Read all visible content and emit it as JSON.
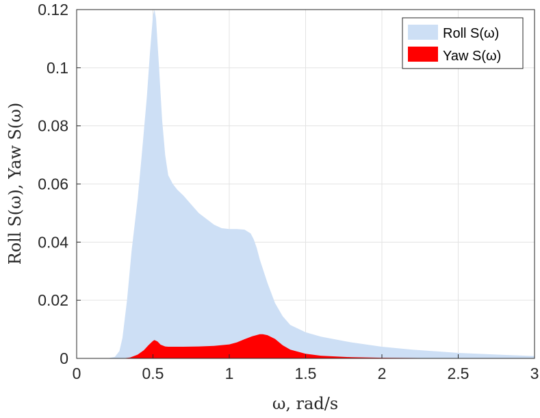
{
  "chart_data": {
    "type": "area",
    "xlabel": "ω, rad/s",
    "ylabel": "Roll S(ω), Yaw S(ω)",
    "xlim": [
      0,
      3
    ],
    "ylim": [
      0,
      0.12
    ],
    "xticks": [
      0,
      0.5,
      1,
      1.5,
      2,
      2.5,
      3
    ],
    "xtick_labels": [
      "0",
      "0.5",
      "1",
      "1.5",
      "2",
      "2.5",
      "3"
    ],
    "yticks": [
      0,
      0.02,
      0.04,
      0.06,
      0.08,
      0.1,
      0.12
    ],
    "ytick_labels": [
      "0",
      "0.02",
      "0.04",
      "0.06",
      "0.08",
      "0.1",
      "0.12"
    ],
    "grid": true,
    "legend_position": "top-right",
    "series": [
      {
        "name": "Roll S(ω)",
        "color": "#cddff5",
        "x": [
          0,
          0.2,
          0.25,
          0.28,
          0.3,
          0.33,
          0.36,
          0.4,
          0.43,
          0.46,
          0.48,
          0.5,
          0.51,
          0.52,
          0.54,
          0.56,
          0.58,
          0.6,
          0.63,
          0.66,
          0.7,
          0.75,
          0.8,
          0.85,
          0.9,
          0.95,
          1.0,
          1.05,
          1.1,
          1.14,
          1.16,
          1.18,
          1.2,
          1.25,
          1.3,
          1.35,
          1.4,
          1.5,
          1.6,
          1.8,
          2.0,
          2.2,
          2.5,
          2.8,
          3.0
        ],
        "values": [
          0,
          0,
          0.0005,
          0.0025,
          0.007,
          0.02,
          0.037,
          0.055,
          0.072,
          0.09,
          0.105,
          0.118,
          0.12,
          0.117,
          0.1,
          0.082,
          0.07,
          0.063,
          0.06,
          0.058,
          0.056,
          0.053,
          0.05,
          0.048,
          0.046,
          0.0448,
          0.0445,
          0.0445,
          0.0443,
          0.043,
          0.041,
          0.038,
          0.034,
          0.026,
          0.019,
          0.0145,
          0.0115,
          0.009,
          0.0075,
          0.0055,
          0.004,
          0.003,
          0.0019,
          0.0012,
          0.0008
        ]
      },
      {
        "name": "Yaw S(ω)",
        "color": "#ff0000",
        "x": [
          0,
          0.3,
          0.35,
          0.4,
          0.44,
          0.47,
          0.5,
          0.51,
          0.53,
          0.55,
          0.58,
          0.6,
          0.7,
          0.8,
          0.9,
          1.0,
          1.05,
          1.1,
          1.15,
          1.2,
          1.22,
          1.25,
          1.3,
          1.35,
          1.4,
          1.5,
          1.6,
          1.8,
          2.0,
          2.5,
          3.0
        ],
        "values": [
          0,
          0,
          0.0003,
          0.0013,
          0.0028,
          0.0045,
          0.006,
          0.0063,
          0.0058,
          0.0047,
          0.0041,
          0.004,
          0.004,
          0.0041,
          0.0043,
          0.0048,
          0.0055,
          0.0066,
          0.0076,
          0.0083,
          0.0083,
          0.008,
          0.0067,
          0.0045,
          0.003,
          0.0016,
          0.0009,
          0.0004,
          0.0002,
          5e-05,
          0
        ]
      }
    ]
  }
}
